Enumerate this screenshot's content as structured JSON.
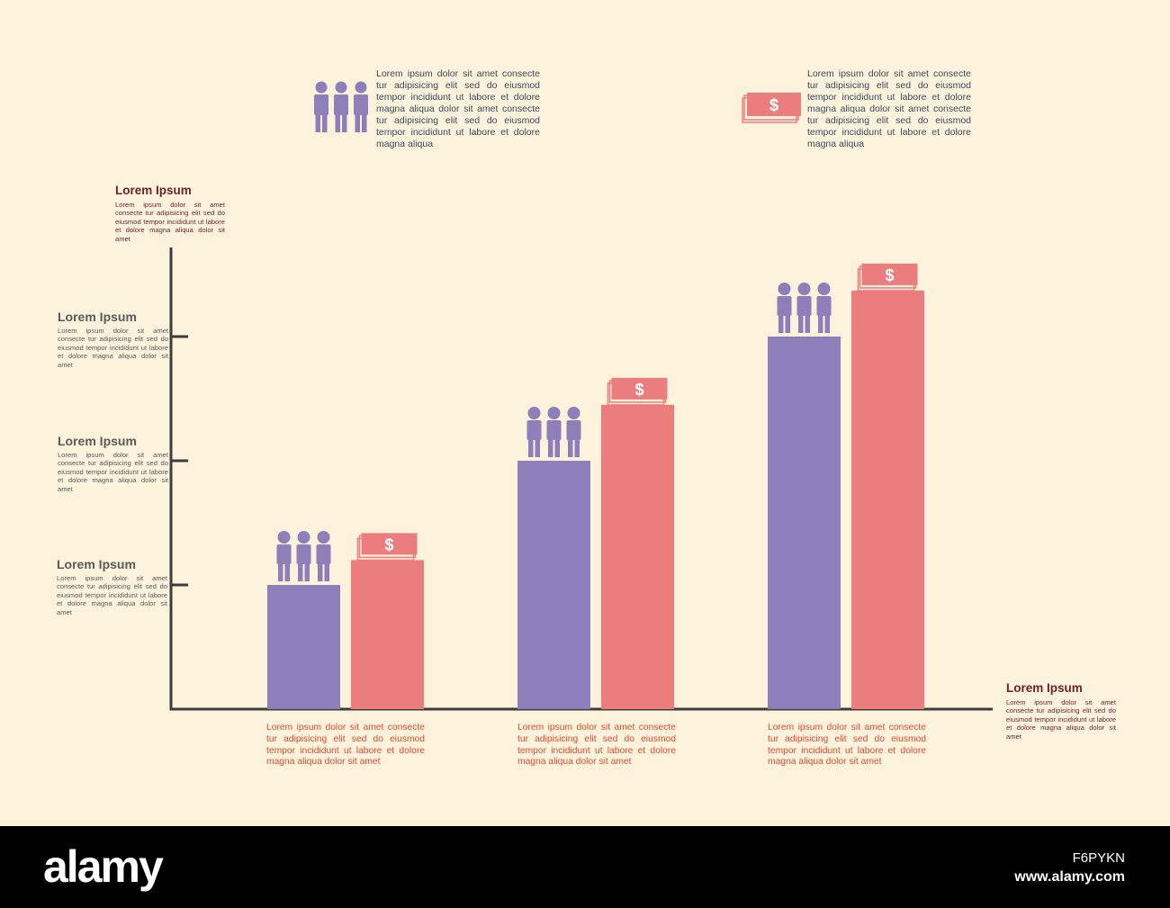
{
  "colors": {
    "background": "#fdf3dd",
    "people": "#8e7fba",
    "money": "#eb7d7f",
    "axis": "#3d3d3d",
    "footer": "#000000"
  },
  "icons": {
    "people": "three-people-icon",
    "money": "money-stack-icon"
  },
  "legend": {
    "people_text": "Lorem ipsum dolor sit amet consecte tur adipisicing elit sed do eiusmod tempor incididunt ut labore et dolore magna aliqua dolor sit amet consecte tur adipisicing elit sed do eiusmod tempor incididunt ut labore et dolore magna aliqua",
    "money_text": "Lorem ipsum dolor sit amet consecte tur adipisicing elit sed do eiusmod tempor incididunt ut labore et dolore magna aliqua dolor sit amet consecte tur adipisicing elit sed do eiusmod tempor incididunt ut labore et dolore magna aliqua",
    "money_symbol": "$"
  },
  "y_axis_label": {
    "title": "Lorem Ipsum",
    "text": "Lorem ipsum dolor sit amet consecte tur adipisicing elit sed do eiusmod tempor incididunt ut labore et dolore magna aliqua dolor sit amet"
  },
  "x_axis_label": {
    "title": "Lorem Ipsum",
    "text": "Lorem ipsum dolor sit amet consecte tur adipisicing elit sed do eiusmod tempor incididunt ut labore et dolore magna aliqua dolor sit amet"
  },
  "tick_labels": [
    {
      "title": "Lorem Ipsum",
      "text": "Lorem ipsum dolor sit amet consecte tur adipisicing elit sed do eiusmod tempor incididunt ut labore et dolore magna aliqua dolor sit amet"
    },
    {
      "title": "Lorem Ipsum",
      "text": "Lorem ipsum dolor sit amet consecte tur adipisicing elit sed do eiusmod tempor incididunt ut labore et dolore magna aliqua dolor sit amet"
    },
    {
      "title": "Lorem Ipsum",
      "text": "Lorem ipsum dolor sit amet consecte tur adipisicing elit sed do eiusmod tempor incididunt ut labore et dolore magna aliqua dolor sit amet"
    }
  ],
  "captions": [
    "Lorem ipsum dolor sit amet consecte tur adipisicing elit sed do eiusmod tempor incididunt ut labore et dolore magna aliqua dolor sit amet",
    "Lorem ipsum dolor sit amet consecte tur adipisicing elit sed do eiusmod tempor incididunt ut labore et dolore magna aliqua dolor sit amet",
    "Lorem ipsum dolor sit amet consecte tur adipisicing elit sed do eiusmod tempor incididunt ut labore et dolore magna aliqua dolor sit amet"
  ],
  "chart_data": {
    "type": "bar",
    "categories": [
      "",
      "",
      ""
    ],
    "series": [
      {
        "values": [
          1.0,
          2.0,
          3.0
        ]
      },
      {
        "values": [
          1.2,
          2.45,
          3.37
        ]
      }
    ],
    "ylim": [
      0,
      3.8
    ],
    "yticks": [
      1,
      2,
      3
    ],
    "grid": false
  },
  "footer": {
    "brand": "alamy",
    "code": "F6PYKN",
    "site": "www.alamy.com"
  }
}
